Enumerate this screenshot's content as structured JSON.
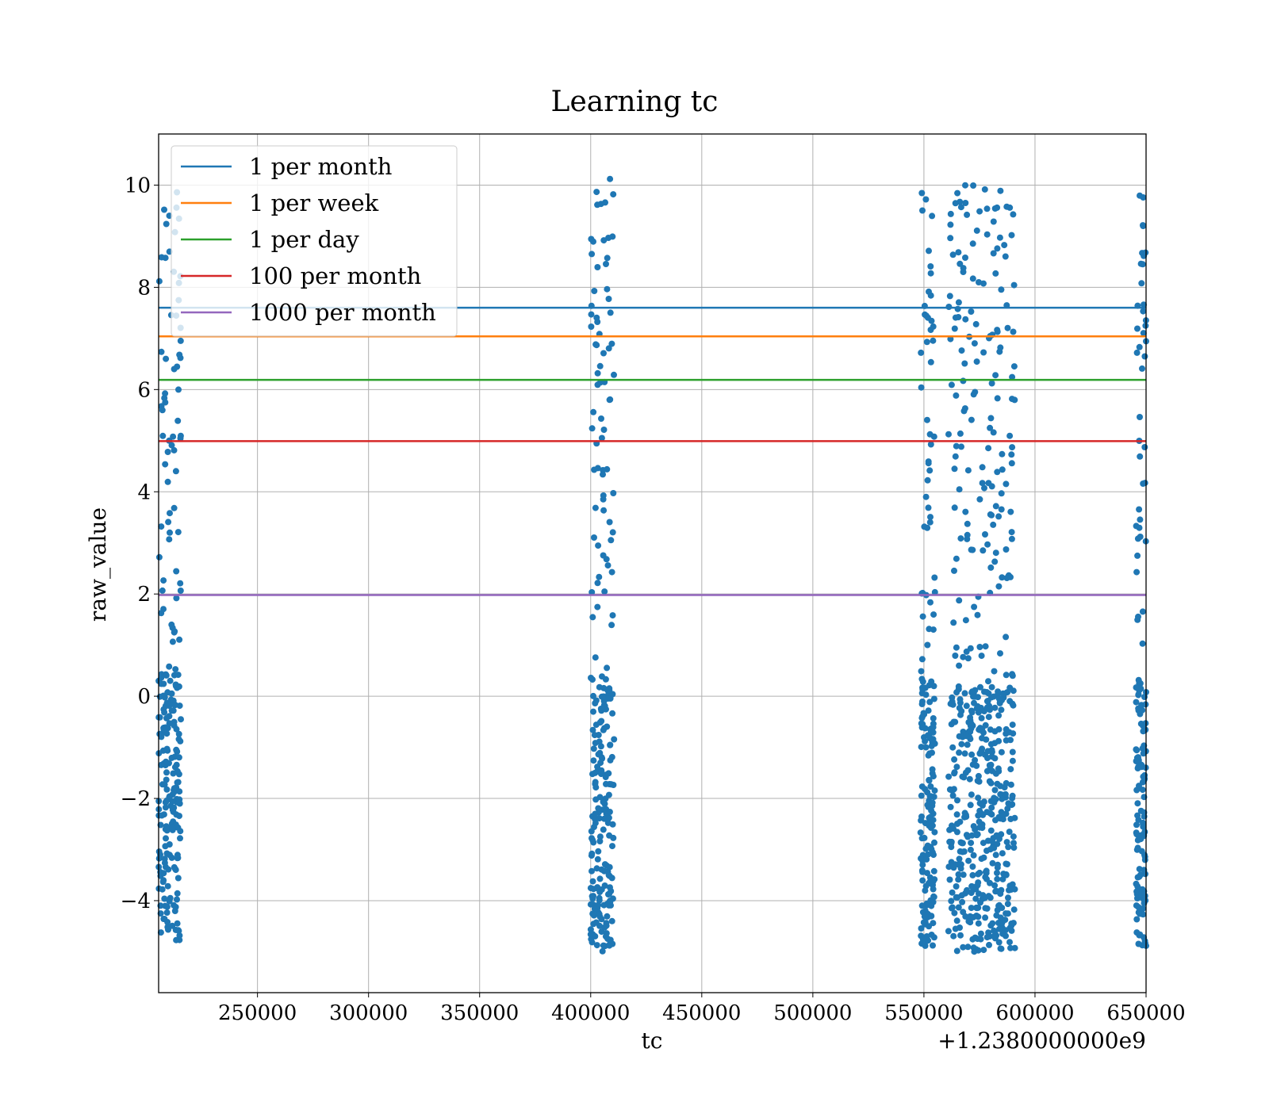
{
  "chart_data": {
    "type": "scatter",
    "title": "Learning tc",
    "xlabel": "tc",
    "ylabel": "raw_value",
    "x_offset_label": "+1.2380000000e9",
    "xlim": [
      1238205500,
      1238650000
    ],
    "ylim": [
      -5.8,
      11.0
    ],
    "x_ticks": [
      1238250000,
      1238300000,
      1238350000,
      1238400000,
      1238450000,
      1238500000,
      1238550000,
      1238600000,
      1238650000
    ],
    "x_tick_labels": [
      "250000",
      "300000",
      "350000",
      "400000",
      "450000",
      "500000",
      "550000",
      "600000",
      "650000"
    ],
    "y_ticks": [
      -4,
      -2,
      0,
      2,
      4,
      6,
      8,
      10
    ],
    "y_tick_labels": [
      "−4",
      "−2",
      "0",
      "2",
      "4",
      "6",
      "8",
      "10"
    ],
    "grid": true,
    "legend_position": "top-left",
    "series": [
      {
        "name": "raw_value",
        "kind": "scatter",
        "color": "#1f77b4",
        "clusters": [
          {
            "x_range": [
              1238205500,
              1238215500
            ],
            "y_range": [
              -4.8,
              9.9
            ]
          },
          {
            "x_range": [
              1238400000,
              1238410500
            ],
            "y_range": [
              -5.0,
              10.2
            ]
          },
          {
            "x_range": [
              1238548500,
              1238555000
            ],
            "y_range": [
              -4.9,
              10.0
            ]
          },
          {
            "x_range": [
              1238561000,
              1238591000
            ],
            "y_range": [
              -5.0,
              10.0
            ]
          },
          {
            "x_range": [
              1238645500,
              1238650000
            ],
            "y_range": [
              -4.9,
              9.8
            ]
          }
        ]
      }
    ],
    "hlines": [
      {
        "name": "1 per month",
        "y": 7.6,
        "color": "#1f77b4"
      },
      {
        "name": "1 per week",
        "y": 7.04,
        "color": "#ff7f0e"
      },
      {
        "name": "1 per day",
        "y": 6.19,
        "color": "#2ca02c"
      },
      {
        "name": "100 per month",
        "y": 4.99,
        "color": "#d62728"
      },
      {
        "name": "1000 per month",
        "y": 1.98,
        "color": "#9467bd"
      }
    ]
  }
}
